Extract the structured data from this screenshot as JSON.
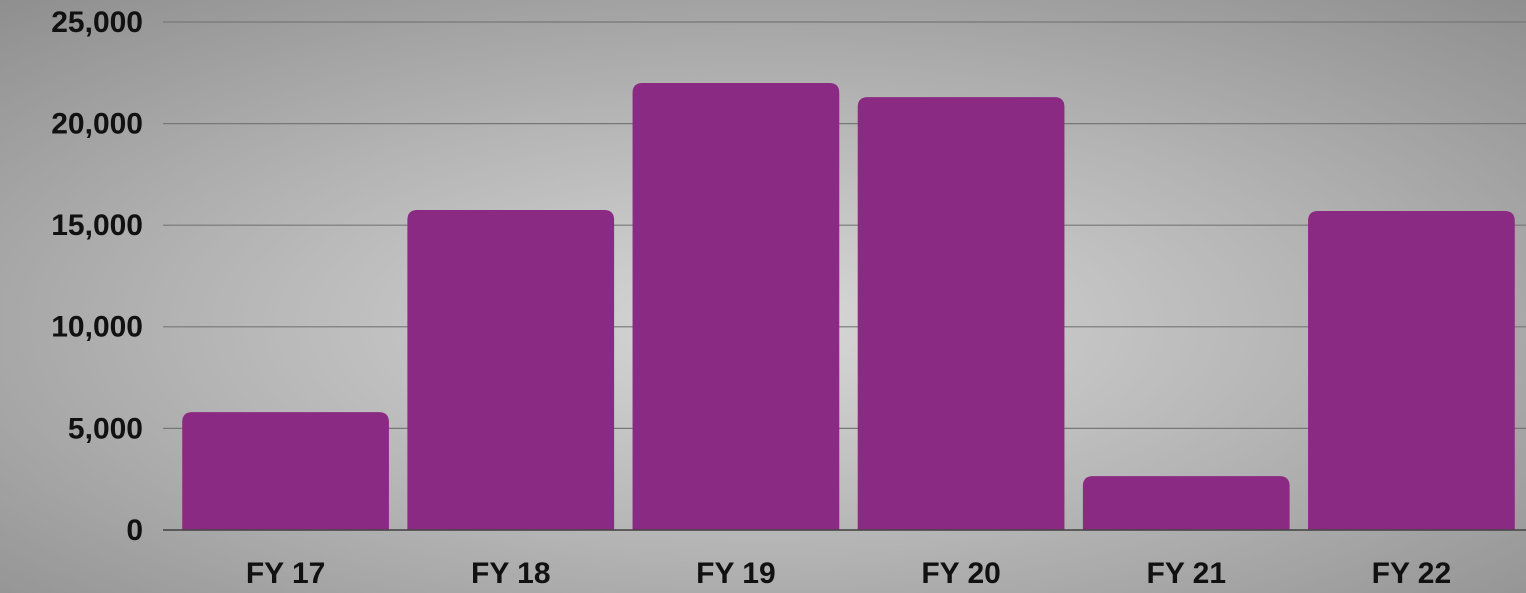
{
  "chart_data": {
    "type": "bar",
    "categories": [
      "FY 17",
      "FY 18",
      "FY 19",
      "FY 20",
      "FY 21",
      "FY 22"
    ],
    "values": [
      5800,
      15750,
      22000,
      21300,
      2650,
      15700
    ],
    "color": "#8b2a82",
    "ylim": [
      0,
      25000
    ],
    "yticks": [
      0,
      {
        "value": 5000,
        "label": "5,000"
      },
      {
        "value": 10000,
        "label": "10,000"
      },
      {
        "value": 15000,
        "label": "15,000"
      },
      {
        "value": 20000,
        "label": "20,000"
      },
      {
        "value": 25000,
        "label": "25,000"
      }
    ],
    "grid": true
  }
}
